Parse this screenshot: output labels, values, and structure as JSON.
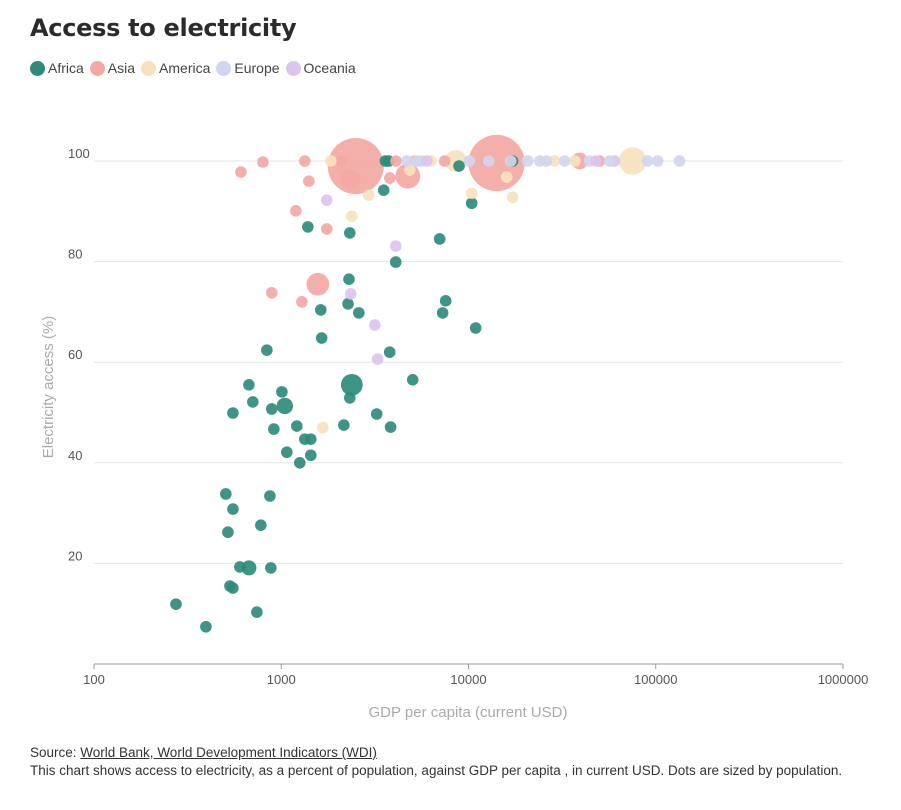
{
  "title": "Access to electricity",
  "legend": [
    {
      "name": "Africa",
      "color": "#2e8b7b"
    },
    {
      "name": "Asia",
      "color": "#f4a8a4"
    },
    {
      "name": "America",
      "color": "#f6e2bd"
    },
    {
      "name": "Europe",
      "color": "#d2d5ef"
    },
    {
      "name": "Oceania",
      "color": "#dcc4f0"
    }
  ],
  "footer": {
    "source_prefix": "Source: ",
    "source_link": "World Bank, World Development Indicators (WDI)",
    "description": "This chart shows access to electricity, as a percent of population, against GDP per capita , in current USD. Dots are sized by population."
  },
  "chart_data": {
    "type": "scatter",
    "title": "Access to electricity",
    "xlabel": "GDP per capita (current USD)",
    "ylabel": "Electricity access (%)",
    "xscale": "log",
    "xlim": [
      100,
      1000000
    ],
    "ylim": [
      0,
      100
    ],
    "xticks": [
      "100",
      "1000",
      "10000",
      "100000",
      "1000000"
    ],
    "xtick_values": [
      100,
      1000,
      10000,
      100000,
      1000000
    ],
    "yticks": [
      "20",
      "40",
      "60",
      "80",
      "100"
    ],
    "ytick_values": [
      20,
      40,
      60,
      80,
      100
    ],
    "grid": "horizontal",
    "legend_position": "top-left",
    "size_note": "population in millions (estimated)",
    "series": [
      {
        "name": "Africa",
        "points": [
          [
            274,
            11.9,
            15
          ],
          [
            396,
            7.4,
            15
          ],
          [
            506,
            33.8,
            20
          ],
          [
            552,
            30.8,
            15
          ],
          [
            519,
            26.2,
            20
          ],
          [
            532,
            15.5,
            20
          ],
          [
            552,
            15.1,
            15
          ],
          [
            601,
            19.3,
            15
          ],
          [
            672,
            19.1,
            100
          ],
          [
            741,
            10.3,
            15
          ],
          [
            778,
            27.6,
            15
          ],
          [
            880,
            19.1,
            15
          ],
          [
            870,
            33.4,
            15
          ],
          [
            838,
            62.4,
            15
          ],
          [
            672,
            55.5,
            15
          ],
          [
            705,
            52.1,
            15
          ],
          [
            552,
            49.9,
            15
          ],
          [
            890,
            50.7,
            15
          ],
          [
            913,
            46.7,
            15
          ],
          [
            1008,
            54.1,
            15
          ],
          [
            1045,
            51.3,
            120
          ],
          [
            1071,
            42.1,
            15
          ],
          [
            1211,
            47.3,
            15
          ],
          [
            1256,
            40.0,
            15
          ],
          [
            1336,
            44.7,
            15
          ],
          [
            1438,
            44.7,
            15
          ],
          [
            1438,
            41.5,
            15
          ],
          [
            1387,
            86.9,
            15
          ],
          [
            1626,
            70.4,
            15
          ],
          [
            1644,
            64.8,
            15
          ],
          [
            2323,
            85.7,
            15
          ],
          [
            2300,
            76.5,
            15
          ],
          [
            2273,
            71.6,
            15
          ],
          [
            2159,
            47.5,
            15
          ],
          [
            2382,
            55.5,
            210
          ],
          [
            2323,
            52.9,
            15
          ],
          [
            2596,
            69.8,
            15
          ],
          [
            3236,
            49.7,
            15
          ],
          [
            3525,
            94.2,
            15
          ],
          [
            3795,
            62.0,
            15
          ],
          [
            3837,
            47.1,
            15
          ],
          [
            4087,
            79.9,
            15
          ],
          [
            5036,
            56.5,
            15
          ],
          [
            7016,
            84.5,
            15
          ],
          [
            7278,
            69.8,
            15
          ],
          [
            7551,
            72.2,
            15
          ],
          [
            10400,
            91.6,
            15
          ],
          [
            10920,
            66.8,
            15
          ],
          [
            3600,
            100,
            15
          ],
          [
            3750,
            100,
            15
          ],
          [
            8900,
            99,
            15
          ],
          [
            17200,
            100,
            15
          ]
        ]
      },
      {
        "name": "Asia",
        "points": [
          [
            609,
            97.8,
            15
          ],
          [
            798,
            99.8,
            15
          ],
          [
            890,
            73.8,
            15
          ],
          [
            1197,
            90.1,
            15
          ],
          [
            1289,
            72.0,
            15
          ],
          [
            1336,
            100,
            15
          ],
          [
            1403,
            96.0,
            15
          ],
          [
            1568,
            75.5,
            230
          ],
          [
            1751,
            86.5,
            15
          ],
          [
            2080,
            100,
            15
          ],
          [
            2350,
            96.4,
            170
          ],
          [
            2500,
            99,
            1400
          ],
          [
            3800,
            96.6,
            15
          ],
          [
            4100,
            100,
            15
          ],
          [
            4740,
            97.0,
            275
          ],
          [
            5160,
            100,
            15
          ],
          [
            7460,
            100,
            15
          ],
          [
            12500,
            100,
            15
          ],
          [
            14130,
            99.6,
            1410
          ],
          [
            39200,
            100,
            125
          ],
          [
            50000,
            100,
            50
          ]
        ]
      },
      {
        "name": "America",
        "points": [
          [
            1840,
            100,
            15
          ],
          [
            1667,
            47,
            15
          ],
          [
            2382,
            89,
            15
          ],
          [
            2934,
            93.2,
            15
          ],
          [
            4860,
            98.2,
            15
          ],
          [
            6300,
            100,
            15
          ],
          [
            8550,
            100,
            215
          ],
          [
            10400,
            93.6,
            15
          ],
          [
            16000,
            96.8,
            15
          ],
          [
            17200,
            92.8,
            15
          ],
          [
            28800,
            100,
            15
          ],
          [
            37000,
            100,
            15
          ],
          [
            75200,
            100,
            335
          ]
        ]
      },
      {
        "name": "Europe",
        "points": [
          [
            4700,
            100,
            15
          ],
          [
            5300,
            100,
            15
          ],
          [
            5600,
            100,
            15
          ],
          [
            10100,
            100,
            15
          ],
          [
            12800,
            100,
            15
          ],
          [
            16800,
            100,
            15
          ],
          [
            20700,
            100,
            15
          ],
          [
            24000,
            100,
            15
          ],
          [
            26000,
            100,
            15
          ],
          [
            32600,
            100,
            15
          ],
          [
            44300,
            100,
            15
          ],
          [
            56700,
            100,
            15
          ],
          [
            90400,
            100,
            15
          ],
          [
            102300,
            100,
            15
          ],
          [
            134000,
            100,
            15
          ]
        ]
      },
      {
        "name": "Oceania",
        "points": [
          [
            1751,
            92.2,
            15
          ],
          [
            2350,
            73.6,
            15
          ],
          [
            3160,
            67.4,
            15
          ],
          [
            3270,
            60.6,
            15
          ],
          [
            4087,
            83.1,
            15
          ],
          [
            5980,
            100,
            15
          ],
          [
            48000,
            100,
            15
          ],
          [
            60300,
            100,
            25
          ]
        ]
      }
    ]
  }
}
